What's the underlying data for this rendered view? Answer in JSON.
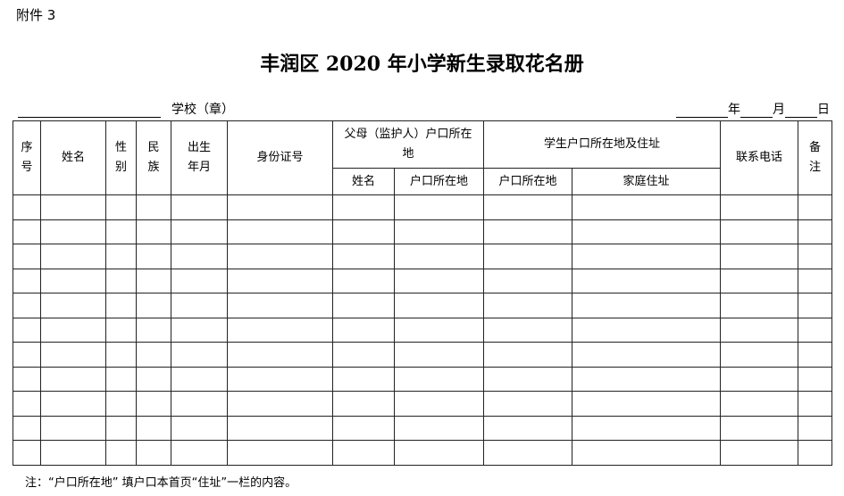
{
  "attachment": "附件 3",
  "title": "丰润区 2020 年小学新生录取花名册",
  "school_label": "学校（章）",
  "date": {
    "year": "年",
    "month": "月",
    "day": "日"
  },
  "headers": {
    "seq": "序号",
    "name": "姓名",
    "gender": "性别",
    "ethnicity": "民族",
    "birth": "出生年月",
    "id": "身份证号",
    "parent_group": "父母（监护人）户口所在地",
    "parent_name": "姓名",
    "parent_hukou": "户口所在地",
    "student_group": "学生户口所在地及住址",
    "student_hukou": "户口所在地",
    "home_address": "家庭住址",
    "phone": "联系电话",
    "remarks": "备注"
  },
  "empty_rows": 11,
  "note": "注：“户口所在地” 填户口本首页“住址”一栏的内容。"
}
